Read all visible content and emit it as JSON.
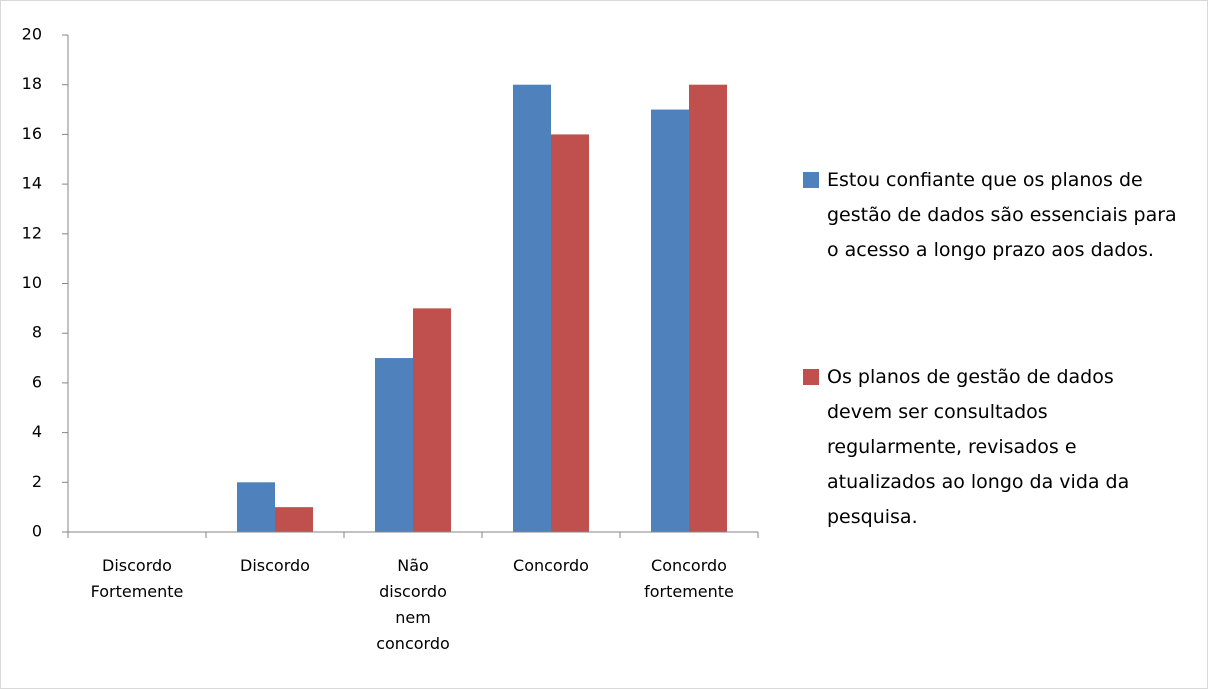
{
  "chart_data": {
    "type": "bar",
    "categories": [
      "Discordo Fortemente",
      "Discordo",
      "Não discordo nem concordo",
      "Concordo",
      "Concordo fortemente"
    ],
    "series": [
      {
        "name": "Estou confiante que os planos de gestão de dados são essenciais para o acesso a longo prazo aos dados.",
        "color": "#4f81bd",
        "values": [
          0,
          2,
          7,
          18,
          17
        ]
      },
      {
        "name": "Os planos de gestão de dados devem ser consultados regularmente, revisados e atualizados ao longo da vida da pesquisa.",
        "color": "#c0504d",
        "values": [
          0,
          1,
          9,
          16,
          18
        ]
      }
    ],
    "ylim": [
      0,
      20
    ],
    "yticks": [
      0,
      2,
      4,
      6,
      8,
      10,
      12,
      14,
      16,
      18,
      20
    ],
    "grid": false,
    "legend": "right"
  }
}
